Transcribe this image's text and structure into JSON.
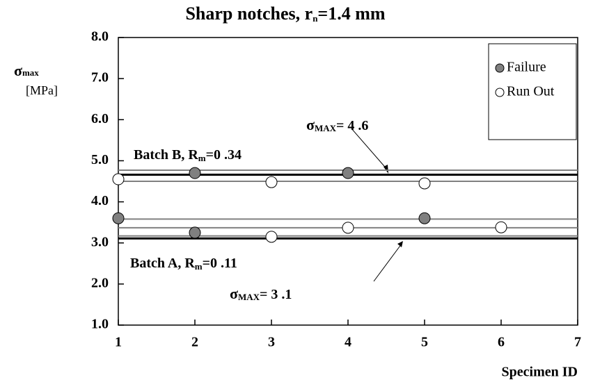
{
  "chart_data": {
    "type": "scatter",
    "title": {
      "text": "Sharp notches, r",
      "subscript": "n",
      "rest": "=1.4 mm"
    },
    "y_label": {
      "symbol": "σ",
      "subscript": "max",
      "unit": "[MPa]"
    },
    "x_label": "Specimen ID",
    "xlim": [
      1,
      7
    ],
    "xticks": [
      1,
      2,
      3,
      4,
      5,
      6,
      7
    ],
    "ylim": [
      1,
      8
    ],
    "yticks": [
      {
        "value": 1,
        "label": "1.0"
      },
      {
        "value": 2,
        "label": "2.0"
      },
      {
        "value": 3,
        "label": "3.0"
      },
      {
        "value": 4,
        "label": "4.0"
      },
      {
        "value": 5,
        "label": "5.0"
      },
      {
        "value": 6,
        "label": "6.0"
      },
      {
        "value": 7,
        "label": "7.0"
      },
      {
        "value": 8,
        "label": "8.0"
      }
    ],
    "legend": "top-right",
    "series": [
      {
        "name": "Failure",
        "color": "#808080",
        "x": [
          1,
          2,
          2,
          4,
          5
        ],
        "values": [
          3.6,
          3.25,
          4.7,
          4.7,
          3.6
        ]
      },
      {
        "name": "Run Out",
        "color": "#ffffff",
        "x": [
          1,
          3,
          3,
          4,
          5,
          6
        ],
        "values": [
          4.55,
          4.48,
          3.15,
          3.37,
          4.45,
          3.38
        ]
      }
    ],
    "reference_lines": [
      {
        "value": 4.77,
        "color": "#808080"
      },
      {
        "value": 4.66,
        "color": "#000000"
      },
      {
        "value": 4.5,
        "color": "#808080"
      },
      {
        "value": 3.58,
        "color": "#808080"
      },
      {
        "value": 3.37,
        "color": "#808080"
      },
      {
        "value": 3.11,
        "color": "#000000"
      },
      {
        "value": 3.17,
        "color": "#808080"
      }
    ],
    "annotations": [
      {
        "symbol": "σ",
        "subscript": "MAX",
        "text": "= 4 .6"
      },
      {
        "text": "Batch B, R",
        "subscript": "m",
        "rest": "=0 .34"
      },
      {
        "text": "Batch A, R",
        "subscript": "m",
        "rest": "=0 .11"
      },
      {
        "symbol": "σ",
        "subscript": "MAX",
        "text": "= 3 .1"
      }
    ]
  }
}
